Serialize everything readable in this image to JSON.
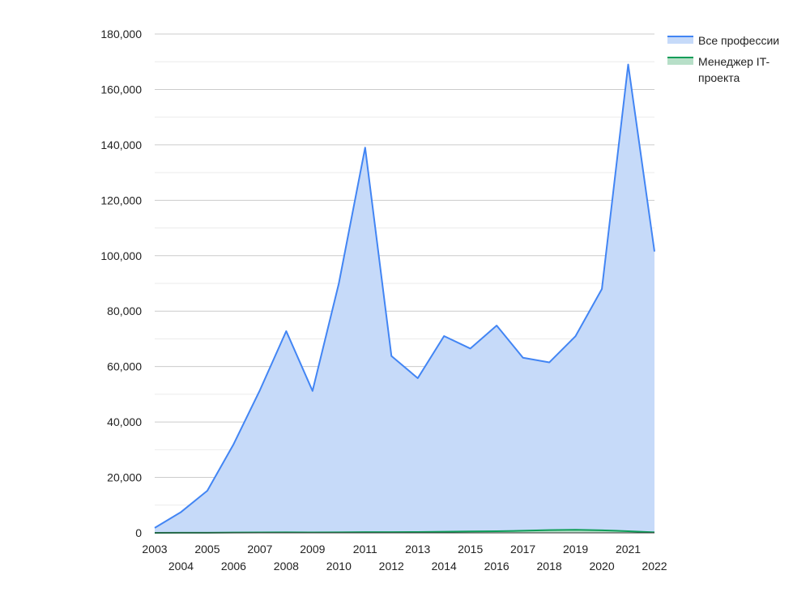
{
  "chart_data": {
    "type": "area",
    "title": "",
    "xlabel": "",
    "ylabel": "",
    "x": [
      "2003",
      "2004",
      "2005",
      "2006",
      "2007",
      "2008",
      "2009",
      "2010",
      "2011",
      "2012",
      "2013",
      "2014",
      "2015",
      "2016",
      "2017",
      "2018",
      "2019",
      "2020",
      "2021",
      "2022"
    ],
    "ylim": [
      0,
      180000
    ],
    "yticks": [
      "0",
      "20,000",
      "40,000",
      "60,000",
      "80,000",
      "100,000",
      "120,000",
      "140,000",
      "160,000",
      "180,000"
    ],
    "grid": true,
    "legend_position": "right",
    "series": [
      {
        "name": "Все профессии",
        "color": "#4285f4",
        "fill": "#c6daf9",
        "values": [
          1800,
          7500,
          15200,
          32000,
          51500,
          72800,
          51200,
          90000,
          139000,
          63800,
          55800,
          71000,
          66500,
          74800,
          63200,
          61500,
          71000,
          88000,
          169000,
          101500
        ]
      },
      {
        "name": "Менеджер IT-проекта",
        "color": "#0f9d58",
        "fill": "#b7dfc8",
        "values": [
          0,
          20,
          50,
          100,
          150,
          200,
          150,
          200,
          250,
          250,
          300,
          400,
          500,
          600,
          750,
          1000,
          1100,
          900,
          600,
          200
        ]
      }
    ]
  }
}
